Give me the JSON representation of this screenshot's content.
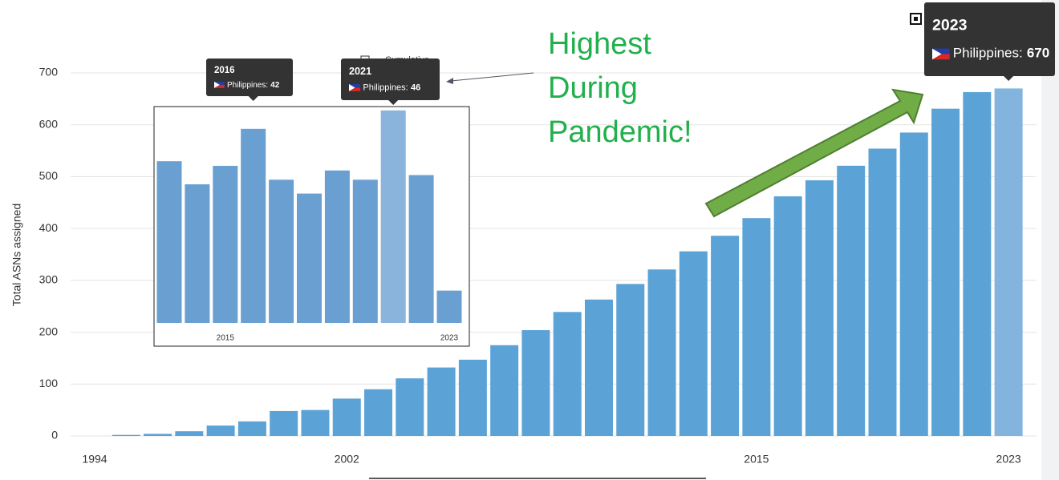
{
  "chart_data": [
    {
      "type": "bar",
      "y_label": "Total ASNs assigned",
      "legend": "Cumulative",
      "categories": [
        "1994",
        null,
        null,
        null,
        null,
        null,
        null,
        null,
        "2002",
        null,
        null,
        null,
        null,
        null,
        null,
        null,
        null,
        null,
        null,
        null,
        null,
        "2015",
        null,
        null,
        null,
        null,
        null,
        null,
        null,
        "2023"
      ],
      "values": [
        0,
        2,
        4,
        9,
        20,
        28,
        48,
        50,
        72,
        90,
        111,
        132,
        147,
        175,
        204,
        239,
        263,
        293,
        321,
        356,
        386,
        420,
        462,
        493,
        521,
        554,
        585,
        631,
        663,
        670
      ],
      "color": "#5ba3d6",
      "highlight_color": "#82b4de",
      "ylim": [
        0,
        700
      ],
      "yticks": [
        0,
        100,
        200,
        300,
        400,
        500,
        600,
        700
      ],
      "grid": true,
      "tooltips": [
        {
          "title": "2023",
          "label": "Philippines:"
        }
      ]
    },
    {
      "type": "bar",
      "legend": "Cumulative",
      "categories": [
        null,
        null,
        "2015",
        null,
        null,
        null,
        null,
        null,
        null,
        null,
        "2023"
      ],
      "values": [
        35,
        30,
        34,
        42,
        31,
        28,
        33,
        31,
        46,
        32,
        7
      ],
      "color": "#6a9fd2",
      "highlight_color": "#8bb4dc",
      "ylim": [
        0,
        47
      ],
      "tooltips": [
        {
          "title": "2016",
          "label": "Philippines:"
        },
        {
          "title": "2021",
          "label": "Philippines:"
        }
      ]
    }
  ],
  "annotation": [
    "Highest",
    "During",
    "Pandemic!"
  ]
}
